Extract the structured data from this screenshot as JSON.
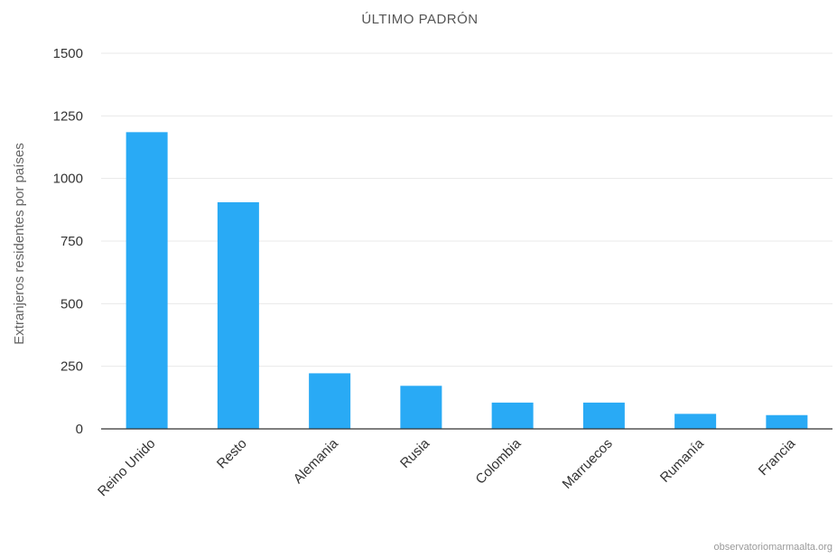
{
  "chart_data": {
    "type": "bar",
    "title": "ÚLTIMO PADRÓN",
    "xlabel": "",
    "ylabel": "Extranjeros residentes por países",
    "categories": [
      "Reino Unido",
      "Resto",
      "Alemania",
      "Rusia",
      "Colombia",
      "Marruecos",
      "Rumanía",
      "Francia"
    ],
    "values": [
      1185,
      905,
      222,
      172,
      105,
      105,
      60,
      55
    ],
    "ylim": [
      0,
      1500
    ],
    "yticks": [
      0,
      250,
      500,
      750,
      1000,
      1250,
      1500
    ],
    "grid": true,
    "legend": "none",
    "bar_color": "#29aaf5"
  },
  "source": "observatoriomarmaalta.org"
}
